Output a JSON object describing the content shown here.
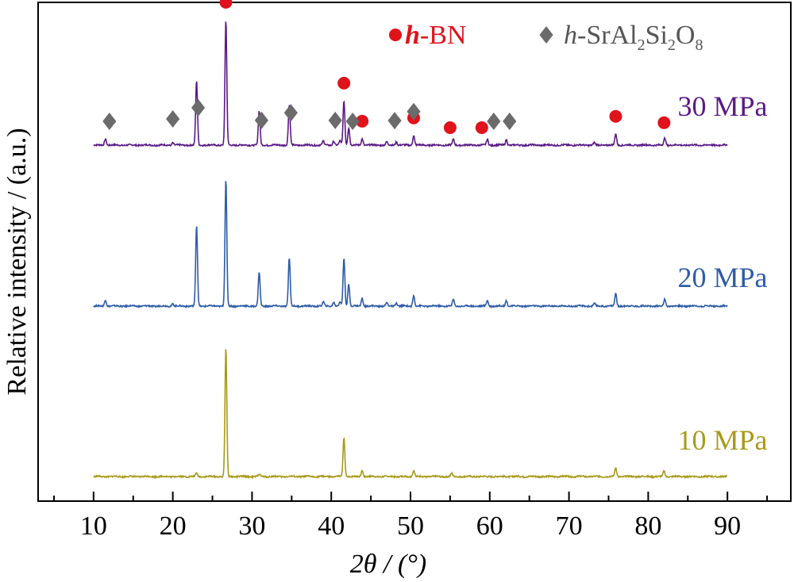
{
  "chart_data": {
    "type": "line",
    "xlabel": "2θ / (°)",
    "ylabel": "Relative intensity / (a.u.)",
    "xlim": [
      3,
      98
    ],
    "x_ticks": [
      10,
      20,
      30,
      40,
      50,
      60,
      70,
      80,
      90
    ],
    "y_ticks_visible": false,
    "legend": {
      "placement": "top-right",
      "items": [
        {
          "marker": "circle",
          "color": "#e0121b",
          "italic": "h",
          "rest": "-BN"
        },
        {
          "marker": "diamond",
          "color": "#6b6b6b",
          "italic": "h",
          "rest": "-SrAl",
          "sub1": "2",
          "mid": "Si",
          "sub2": "2",
          "end": "O",
          "sub3": "8"
        }
      ]
    },
    "series": [
      {
        "name": "30 MPa",
        "color": "#5a1a86",
        "peaks": [
          {
            "x": 11.5,
            "h": 0.08
          },
          {
            "x": 20.0,
            "h": 0.03
          },
          {
            "x": 23.0,
            "h": 0.8
          },
          {
            "x": 26.7,
            "h": 1.55
          },
          {
            "x": 30.9,
            "h": 0.42
          },
          {
            "x": 34.7,
            "h": 0.5
          },
          {
            "x": 39.0,
            "h": 0.05
          },
          {
            "x": 40.3,
            "h": 0.05
          },
          {
            "x": 41.1,
            "h": 0.05
          },
          {
            "x": 41.6,
            "h": 0.55
          },
          {
            "x": 42.2,
            "h": 0.22
          },
          {
            "x": 43.9,
            "h": 0.08
          },
          {
            "x": 47.0,
            "h": 0.04
          },
          {
            "x": 48.2,
            "h": 0.04
          },
          {
            "x": 50.4,
            "h": 0.12
          },
          {
            "x": 55.4,
            "h": 0.07
          },
          {
            "x": 59.7,
            "h": 0.07
          },
          {
            "x": 62.1,
            "h": 0.07
          },
          {
            "x": 73.2,
            "h": 0.03
          },
          {
            "x": 75.9,
            "h": 0.14
          },
          {
            "x": 82.1,
            "h": 0.09
          }
        ],
        "bn_markers": [
          26.7,
          41.6,
          43.9,
          50.4,
          55.0,
          59.0,
          75.9,
          82.0
        ],
        "sas_markers": [
          12.0,
          20.0,
          23.2,
          31.2,
          34.9,
          40.5,
          42.7,
          48.0,
          50.4,
          60.5,
          62.5
        ]
      },
      {
        "name": "20 MPa",
        "color": "#2e5ca8",
        "peaks": [
          {
            "x": 11.5,
            "h": 0.08
          },
          {
            "x": 20.0,
            "h": 0.03
          },
          {
            "x": 23.0,
            "h": 1.0
          },
          {
            "x": 26.7,
            "h": 1.57
          },
          {
            "x": 30.9,
            "h": 0.42
          },
          {
            "x": 34.7,
            "h": 0.6
          },
          {
            "x": 39.0,
            "h": 0.05
          },
          {
            "x": 40.3,
            "h": 0.05
          },
          {
            "x": 41.1,
            "h": 0.05
          },
          {
            "x": 41.6,
            "h": 0.6
          },
          {
            "x": 42.2,
            "h": 0.27
          },
          {
            "x": 43.9,
            "h": 0.1
          },
          {
            "x": 47.0,
            "h": 0.04
          },
          {
            "x": 48.2,
            "h": 0.04
          },
          {
            "x": 50.4,
            "h": 0.13
          },
          {
            "x": 55.4,
            "h": 0.08
          },
          {
            "x": 59.7,
            "h": 0.07
          },
          {
            "x": 62.1,
            "h": 0.07
          },
          {
            "x": 73.2,
            "h": 0.03
          },
          {
            "x": 75.9,
            "h": 0.16
          },
          {
            "x": 82.1,
            "h": 0.09
          }
        ]
      },
      {
        "name": "10 MPa",
        "color": "#a89a1a",
        "peaks": [
          {
            "x": 23.0,
            "h": 0.04
          },
          {
            "x": 26.7,
            "h": 1.6
          },
          {
            "x": 30.9,
            "h": 0.03
          },
          {
            "x": 41.6,
            "h": 0.48
          },
          {
            "x": 43.9,
            "h": 0.08
          },
          {
            "x": 50.4,
            "h": 0.08
          },
          {
            "x": 55.2,
            "h": 0.04
          },
          {
            "x": 75.9,
            "h": 0.11
          },
          {
            "x": 82.0,
            "h": 0.07
          }
        ]
      }
    ]
  }
}
